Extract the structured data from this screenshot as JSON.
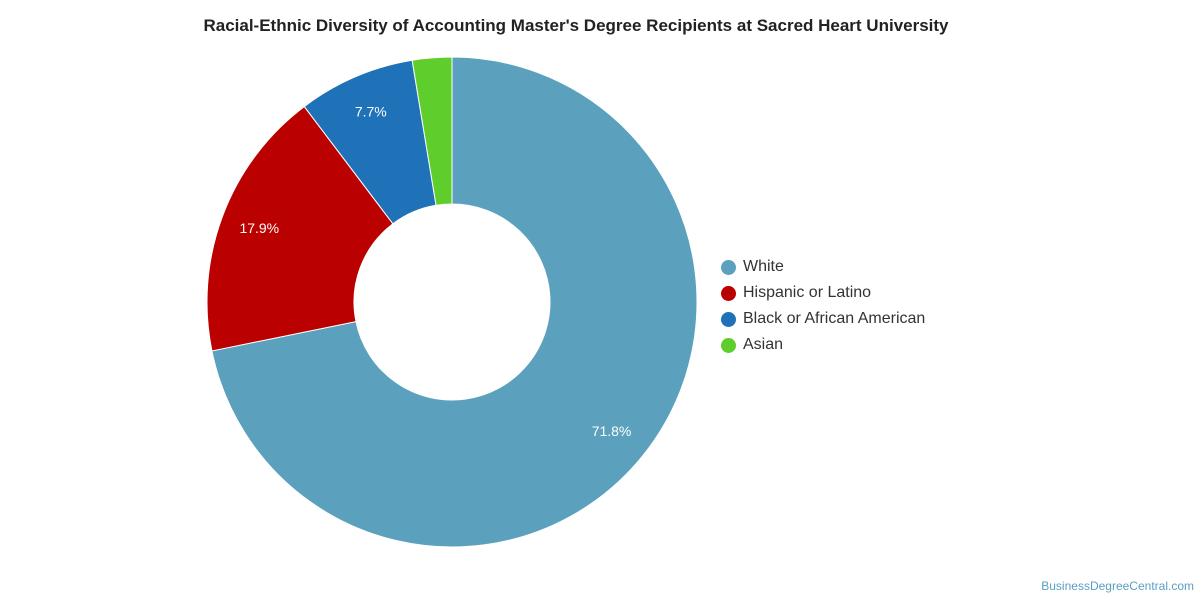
{
  "chart_data": {
    "type": "pie",
    "title": "Racial-Ethnic Diversity of Accounting Master's Degree Recipients at Sacred Heart University",
    "donut": true,
    "legend_position": "right",
    "slices": [
      {
        "label": "White",
        "value": 71.8,
        "value_label": "71.8%",
        "color": "#5ba1be"
      },
      {
        "label": "Hispanic or Latino",
        "value": 17.9,
        "value_label": "17.9%",
        "color": "#bb0000"
      },
      {
        "label": "Black or African American",
        "value": 7.7,
        "value_label": "7.7%",
        "color": "#1f72b8"
      },
      {
        "label": "Asian",
        "value": 2.6,
        "value_label": "",
        "color": "#5fcd2b"
      }
    ]
  },
  "watermark": "BusinessDegreeCentral.com"
}
